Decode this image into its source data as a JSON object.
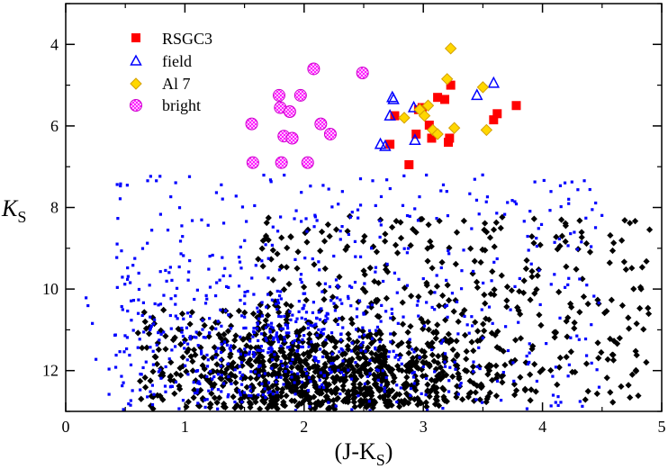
{
  "chart_data": {
    "type": "scatter",
    "title": "",
    "xlabel": {
      "prefix": "(J-K",
      "sub": "S",
      "suffix": ")"
    },
    "ylabel": {
      "main": "K",
      "sub": "S"
    },
    "xlim": [
      0,
      5
    ],
    "ylim": [
      13,
      3
    ],
    "y_inverted": true,
    "x_ticks": [
      0,
      1,
      2,
      3,
      4,
      5
    ],
    "y_ticks": [
      4,
      6,
      8,
      10,
      12
    ],
    "grid": false,
    "legend_position": "top-left",
    "series": [
      {
        "name": "RSGC3",
        "marker": "square",
        "color": "#ff0000",
        "points": [
          [
            2.76,
            5.75
          ],
          [
            2.88,
            6.95
          ],
          [
            2.94,
            6.2
          ],
          [
            2.96,
            5.6
          ],
          [
            2.99,
            5.55
          ],
          [
            3.05,
            5.98
          ],
          [
            3.07,
            6.3
          ],
          [
            3.12,
            5.3
          ],
          [
            3.18,
            5.35
          ],
          [
            3.21,
            6.4
          ],
          [
            3.22,
            6.3
          ],
          [
            3.23,
            5.0
          ],
          [
            3.59,
            5.85
          ],
          [
            3.62,
            5.7
          ],
          [
            3.78,
            5.5
          ],
          [
            2.72,
            6.45
          ]
        ]
      },
      {
        "name": "field",
        "marker": "triangle",
        "color": "#0000ff",
        "points": [
          [
            2.64,
            6.45
          ],
          [
            2.68,
            6.5
          ],
          [
            2.72,
            5.75
          ],
          [
            2.74,
            5.3
          ],
          [
            2.75,
            5.35
          ],
          [
            2.92,
            5.55
          ],
          [
            2.93,
            6.35
          ],
          [
            3.45,
            5.25
          ],
          [
            3.59,
            4.95
          ]
        ]
      },
      {
        "name": "Al 7",
        "marker": "diamond",
        "color": "#ffd700",
        "points": [
          [
            2.84,
            5.8
          ],
          [
            2.97,
            5.6
          ],
          [
            3.01,
            5.75
          ],
          [
            3.04,
            5.5
          ],
          [
            3.08,
            6.1
          ],
          [
            3.12,
            6.2
          ],
          [
            3.2,
            4.85
          ],
          [
            3.23,
            4.1
          ],
          [
            3.26,
            6.05
          ],
          [
            3.5,
            5.05
          ],
          [
            3.53,
            6.1
          ]
        ]
      },
      {
        "name": "bright",
        "marker": "circle-hatched",
        "color": "#ff00ff",
        "points": [
          [
            1.56,
            5.95
          ],
          [
            1.57,
            6.9
          ],
          [
            1.79,
            5.25
          ],
          [
            1.8,
            5.55
          ],
          [
            1.81,
            6.9
          ],
          [
            1.83,
            6.25
          ],
          [
            1.88,
            5.65
          ],
          [
            1.9,
            6.3
          ],
          [
            1.97,
            5.25
          ],
          [
            2.03,
            6.9
          ],
          [
            2.08,
            4.6
          ],
          [
            2.14,
            5.95
          ],
          [
            2.22,
            6.2
          ],
          [
            2.49,
            4.7
          ]
        ]
      }
    ],
    "background_series": [
      {
        "name": "black-diamonds",
        "marker": "diamond",
        "color": "#000000",
        "count": 1300
      },
      {
        "name": "blue-dots",
        "marker": "small-square",
        "color": "#0000ff",
        "count": 850
      }
    ]
  }
}
